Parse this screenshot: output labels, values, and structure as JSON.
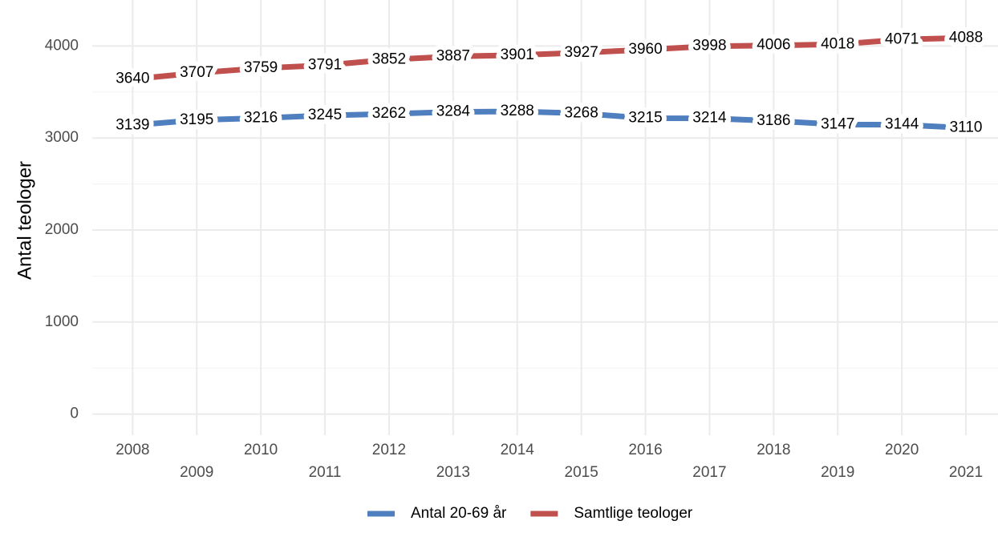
{
  "chart_data": {
    "type": "line",
    "ylabel": "Antal teologer",
    "x": [
      2008,
      2009,
      2010,
      2011,
      2012,
      2013,
      2014,
      2015,
      2016,
      2017,
      2018,
      2019,
      2020,
      2021
    ],
    "series": [
      {
        "name": "Antal 20-69 år",
        "color": "#4f7fbf",
        "values": [
          3139,
          3195,
          3216,
          3245,
          3262,
          3284,
          3288,
          3268,
          3215,
          3214,
          3186,
          3147,
          3144,
          3110
        ]
      },
      {
        "name": "Samtlige teologer",
        "color": "#c0504d",
        "values": [
          3640,
          3707,
          3759,
          3791,
          3852,
          3887,
          3901,
          3927,
          3960,
          3998,
          4006,
          4018,
          4071,
          4088
        ]
      }
    ],
    "xlim": [
      2007.37,
      2021.5
    ],
    "xticks": [
      2008,
      2009,
      2010,
      2011,
      2012,
      2013,
      2014,
      2015,
      2016,
      2017,
      2018,
      2019,
      2020,
      2021
    ],
    "ylim": [
      -230,
      4500
    ],
    "yticks": [
      0,
      1000,
      2000,
      3000,
      4000
    ],
    "yminorticks": [
      500,
      1500,
      2500,
      3500
    ],
    "grid": true,
    "legend": "bottom"
  }
}
